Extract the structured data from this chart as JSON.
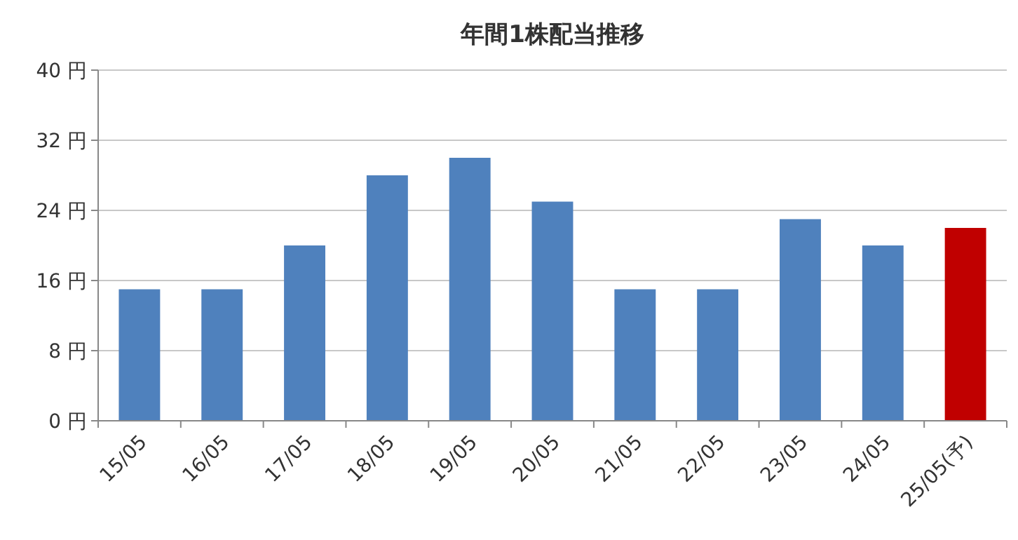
{
  "chart_data": {
    "type": "bar",
    "title": "年間1株配当推移",
    "categories": [
      "15/05",
      "16/05",
      "17/05",
      "18/05",
      "19/05",
      "20/05",
      "21/05",
      "22/05",
      "23/05",
      "24/05",
      "25/05(予)"
    ],
    "values": [
      15,
      15,
      20,
      28,
      30,
      25,
      15,
      15,
      23,
      20,
      22
    ],
    "colors": [
      "#4f81bd",
      "#4f81bd",
      "#4f81bd",
      "#4f81bd",
      "#4f81bd",
      "#4f81bd",
      "#4f81bd",
      "#4f81bd",
      "#4f81bd",
      "#4f81bd",
      "#c00000"
    ],
    "ylim": [
      0,
      40
    ],
    "yticks": [
      {
        "value": 0,
        "label": "0 円"
      },
      {
        "value": 8,
        "label": "8 円"
      },
      {
        "value": 16,
        "label": "16 円"
      },
      {
        "value": 24,
        "label": "24 円"
      },
      {
        "value": 32,
        "label": "32 円"
      },
      {
        "value": 40,
        "label": "40 円"
      }
    ],
    "grid": "y"
  }
}
